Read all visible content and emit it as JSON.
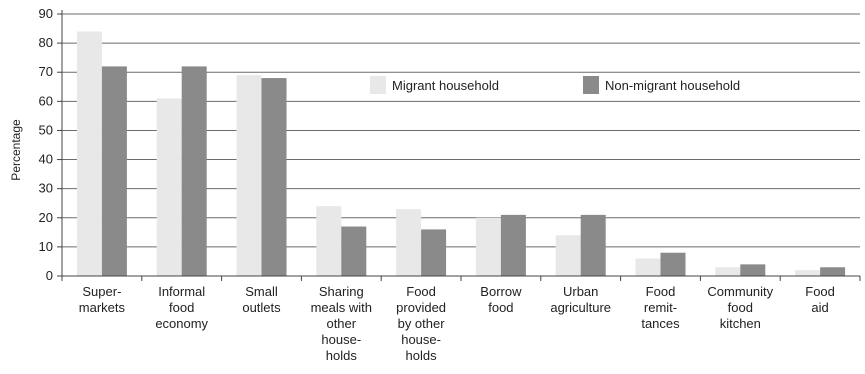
{
  "chart_data": {
    "type": "bar",
    "title": "",
    "xlabel": "",
    "ylabel": "Percentage",
    "ylim": [
      0,
      90
    ],
    "yticks": [
      0,
      10,
      20,
      30,
      40,
      50,
      60,
      70,
      80,
      90
    ],
    "grid": true,
    "legend_position": "top-center",
    "categories": [
      [
        "Super-",
        "markets"
      ],
      [
        "Informal",
        "food",
        "economy"
      ],
      [
        "Small",
        "outlets"
      ],
      [
        "Sharing",
        "meals with",
        "other",
        "house-",
        "holds"
      ],
      [
        "Food",
        "provided",
        "by other",
        "house-",
        "holds"
      ],
      [
        "Borrow",
        "food"
      ],
      [
        "Urban",
        "agriculture"
      ],
      [
        "Food",
        "remit-",
        "tances"
      ],
      [
        "Community",
        "food",
        "kitchen"
      ],
      [
        "Food",
        "aid"
      ]
    ],
    "series": [
      {
        "name": "Migrant household",
        "color": "#e8e8e8",
        "values": [
          84,
          61,
          69,
          24,
          23,
          20,
          14,
          6,
          3,
          2
        ]
      },
      {
        "name": "Non-migrant household",
        "color": "#8a8a8a",
        "values": [
          72,
          72,
          68,
          17,
          16,
          21,
          21,
          8,
          4,
          3
        ]
      }
    ]
  }
}
